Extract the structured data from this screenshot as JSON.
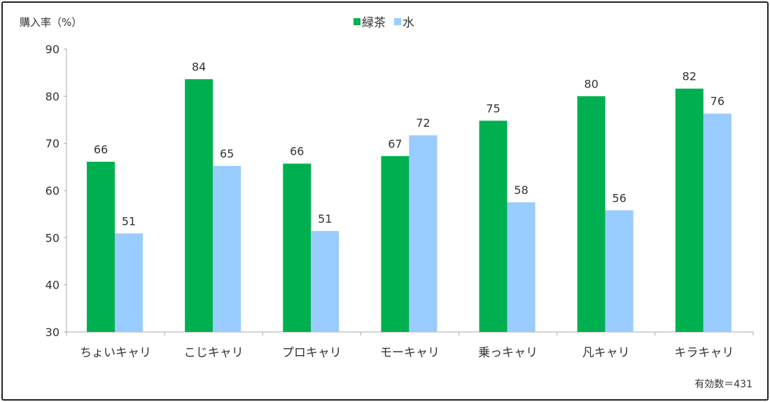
{
  "chart_data": {
    "type": "bar",
    "title": "",
    "ylabel": "購入率（%）",
    "xlabel": "",
    "ylim": [
      30,
      90
    ],
    "yticks": [
      30,
      40,
      50,
      60,
      70,
      80,
      90
    ],
    "categories": [
      "ちょいキャリ",
      "こじキャリ",
      "プロキャリ",
      "モーキャリ",
      "乗っキャリ",
      "凡キャリ",
      "キラキャリ"
    ],
    "series": [
      {
        "name": "緑茶",
        "color": "#00b050",
        "values": [
          66.1,
          83.6,
          65.7,
          67.3,
          74.8,
          80.0,
          81.6
        ],
        "labels": [
          "66",
          "84",
          "66",
          "67",
          "75",
          "80",
          "82"
        ]
      },
      {
        "name": "水",
        "color": "#99ccff",
        "values": [
          50.9,
          65.2,
          51.4,
          71.7,
          57.5,
          55.8,
          76.3
        ],
        "labels": [
          "51",
          "65",
          "51",
          "72",
          "58",
          "56",
          "76"
        ]
      }
    ],
    "legend_position": "top-center",
    "grid": false,
    "note": "有効数＝431"
  }
}
